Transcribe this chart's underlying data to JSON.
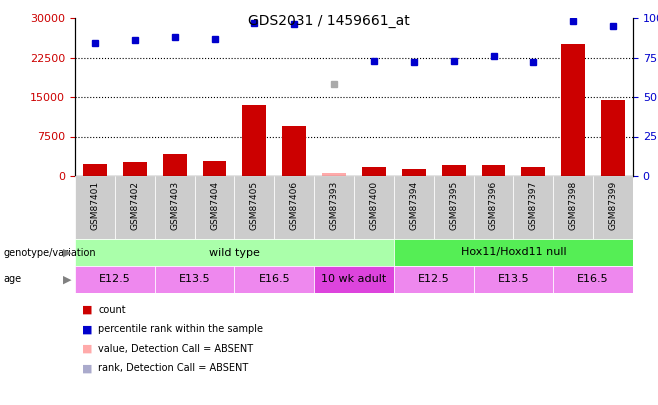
{
  "title": "GDS2031 / 1459661_at",
  "samples": [
    "GSM87401",
    "GSM87402",
    "GSM87403",
    "GSM87404",
    "GSM87405",
    "GSM87406",
    "GSM87393",
    "GSM87400",
    "GSM87394",
    "GSM87395",
    "GSM87396",
    "GSM87397",
    "GSM87398",
    "GSM87399"
  ],
  "bar_values": [
    2200,
    2600,
    4200,
    2800,
    13500,
    9500,
    0,
    1700,
    1400,
    2000,
    2000,
    1700,
    25000,
    14500
  ],
  "bar_absent": [
    false,
    false,
    false,
    false,
    false,
    false,
    true,
    false,
    false,
    false,
    false,
    false,
    false,
    false
  ],
  "absent_bar_value": 600,
  "rank_values": [
    84,
    86,
    88,
    87,
    97,
    96,
    58,
    73,
    72,
    73,
    76,
    72,
    98,
    95
  ],
  "rank_absent": [
    false,
    false,
    false,
    false,
    false,
    false,
    true,
    false,
    false,
    false,
    false,
    false,
    false,
    false
  ],
  "bar_color": "#cc0000",
  "bar_absent_color": "#ffaaaa",
  "rank_color": "#0000cc",
  "rank_absent_color": "#aaaaaa",
  "ylim_left": [
    0,
    30000
  ],
  "ylim_right": [
    0,
    100
  ],
  "yticks_left": [
    0,
    7500,
    15000,
    22500,
    30000
  ],
  "yticks_right": [
    0,
    25,
    50,
    75,
    100
  ],
  "grid_values": [
    7500,
    15000,
    22500
  ],
  "genotype_groups": [
    {
      "label": "wild type",
      "start": 0,
      "end": 8,
      "color": "#aaffaa"
    },
    {
      "label": "Hox11/Hoxd11 null",
      "start": 8,
      "end": 14,
      "color": "#55ee55"
    }
  ],
  "age_groups": [
    {
      "label": "E12.5",
      "start": 0,
      "end": 2,
      "color": "#ee88ee"
    },
    {
      "label": "E13.5",
      "start": 2,
      "end": 4,
      "color": "#ee88ee"
    },
    {
      "label": "E16.5",
      "start": 4,
      "end": 6,
      "color": "#ee88ee"
    },
    {
      "label": "10 wk adult",
      "start": 6,
      "end": 8,
      "color": "#dd44dd"
    },
    {
      "label": "E12.5",
      "start": 8,
      "end": 10,
      "color": "#ee88ee"
    },
    {
      "label": "E13.5",
      "start": 10,
      "end": 12,
      "color": "#ee88ee"
    },
    {
      "label": "E16.5",
      "start": 12,
      "end": 14,
      "color": "#ee88ee"
    }
  ],
  "legend_items": [
    {
      "label": "count",
      "color": "#cc0000",
      "marker": "s"
    },
    {
      "label": "percentile rank within the sample",
      "color": "#0000cc",
      "marker": "s"
    },
    {
      "label": "value, Detection Call = ABSENT",
      "color": "#ffaaaa",
      "marker": "s"
    },
    {
      "label": "rank, Detection Call = ABSENT",
      "color": "#aaaacc",
      "marker": "s"
    }
  ],
  "tick_color_left": "#cc0000",
  "tick_color_right": "#0000cc",
  "xlabel_bg": "#cccccc",
  "bar_width": 0.6
}
